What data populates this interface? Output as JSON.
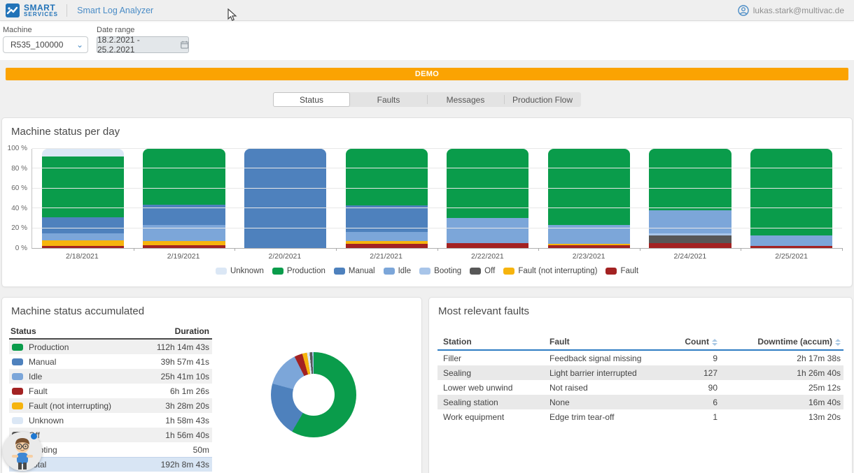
{
  "header": {
    "logo_line1": "SMART",
    "logo_line2": "SERVICES",
    "app_title": "Smart Log Analyzer",
    "user_email": "lukas.stark@multivac.de"
  },
  "filters": {
    "machine_label": "Machine",
    "machine_value": "R535_100000",
    "date_label": "Date range",
    "date_value": "18.2.2021 - 25.2.2021"
  },
  "banner": {
    "text": "DEMO",
    "color": "#fba302"
  },
  "tabs": {
    "items": [
      {
        "label": "Status",
        "active": true
      },
      {
        "label": "Faults",
        "active": false
      },
      {
        "label": "Messages",
        "active": false
      },
      {
        "label": "Production Flow",
        "active": false
      }
    ]
  },
  "statuses": [
    {
      "key": "unknown",
      "label": "Unknown",
      "color": "#dbe7f5"
    },
    {
      "key": "production",
      "label": "Production",
      "color": "#0a9c4b"
    },
    {
      "key": "manual",
      "label": "Manual",
      "color": "#4e81bd"
    },
    {
      "key": "idle",
      "label": "Idle",
      "color": "#7ca6d9"
    },
    {
      "key": "booting",
      "label": "Booting",
      "color": "#a8c5e9"
    },
    {
      "key": "off",
      "label": "Off",
      "color": "#575757"
    },
    {
      "key": "fault_ni",
      "label": "Fault (not interrupting)",
      "color": "#f6b40e"
    },
    {
      "key": "fault",
      "label": "Fault",
      "color": "#a32222"
    }
  ],
  "chart_data": [
    {
      "type": "bar",
      "stacked": true,
      "title": "Machine status per day",
      "categories": [
        "2/18/2021",
        "2/19/2021",
        "2/20/2021",
        "2/21/2021",
        "2/22/2021",
        "2/23/2021",
        "2/24/2021",
        "2/25/2021"
      ],
      "yticks": [
        "0 %",
        "20 %",
        "40 %",
        "60 %",
        "80 %",
        "100 %"
      ],
      "ylim": [
        0,
        100
      ],
      "grid": true,
      "legend_position": "bottom",
      "legend": [
        "Unknown",
        "Production",
        "Manual",
        "Idle",
        "Booting",
        "Off",
        "Fault (not interrupting)",
        "Fault"
      ],
      "series": [
        {
          "key": "fault",
          "name": "Fault",
          "values": [
            2,
            3,
            0,
            4,
            5,
            3,
            5,
            2
          ]
        },
        {
          "key": "fault_ni",
          "name": "Fault (not interrupting)",
          "values": [
            6,
            4,
            0,
            3,
            0,
            1,
            0,
            0
          ]
        },
        {
          "key": "off",
          "name": "Off",
          "values": [
            0,
            0,
            0,
            0,
            0,
            0,
            8,
            0
          ]
        },
        {
          "key": "booting",
          "name": "Booting",
          "values": [
            0,
            0,
            0,
            0,
            0,
            0,
            2,
            0
          ]
        },
        {
          "key": "idle",
          "name": "Idle",
          "values": [
            7,
            16,
            0,
            9,
            25,
            19,
            23,
            11
          ]
        },
        {
          "key": "manual",
          "name": "Manual",
          "values": [
            16,
            21,
            100,
            27,
            0,
            0,
            0,
            0
          ]
        },
        {
          "key": "production",
          "name": "Production",
          "values": [
            61,
            56,
            0,
            57,
            70,
            77,
            62,
            87
          ]
        },
        {
          "key": "unknown",
          "name": "Unknown",
          "values": [
            8,
            0,
            0,
            0,
            0,
            0,
            0,
            0
          ]
        }
      ]
    },
    {
      "type": "pie",
      "donut": true,
      "title": "Machine status accumulated",
      "slices": [
        {
          "key": "production",
          "name": "Production",
          "pct": 58.4
        },
        {
          "key": "manual",
          "name": "Manual",
          "pct": 20.8
        },
        {
          "key": "idle",
          "name": "Idle",
          "pct": 13.4
        },
        {
          "key": "fault",
          "name": "Fault",
          "pct": 3.1
        },
        {
          "key": "fault_ni",
          "name": "Fault (not interrupting)",
          "pct": 1.8
        },
        {
          "key": "unknown",
          "name": "Unknown",
          "pct": 1.0
        },
        {
          "key": "off",
          "name": "Off",
          "pct": 1.0
        },
        {
          "key": "booting",
          "name": "Booting",
          "pct": 0.5
        }
      ]
    }
  ],
  "accumulated": {
    "title": "Machine status accumulated",
    "columns": [
      "Status",
      "Duration"
    ],
    "rows": [
      {
        "key": "production",
        "label": "Production",
        "duration": "112h 14m 43s"
      },
      {
        "key": "manual",
        "label": "Manual",
        "duration": "39h 57m 41s"
      },
      {
        "key": "idle",
        "label": "Idle",
        "duration": "25h 41m 10s"
      },
      {
        "key": "fault",
        "label": "Fault",
        "duration": "6h 1m 26s"
      },
      {
        "key": "fault_ni",
        "label": "Fault (not interrupting)",
        "duration": "3h 28m 20s"
      },
      {
        "key": "unknown",
        "label": "Unknown",
        "duration": "1h 58m 43s"
      },
      {
        "key": "off",
        "label": "Off",
        "duration": "1h 56m 40s"
      },
      {
        "key": "booting",
        "label": "Booting",
        "duration": "50m"
      }
    ],
    "total": {
      "label": "Total",
      "duration": "192h 8m 43s"
    }
  },
  "faults": {
    "title": "Most relevant faults",
    "columns": [
      "Station",
      "Fault",
      "Count",
      "Downtime (accum)"
    ],
    "rows": [
      {
        "station": "Filler",
        "fault": "Feedback signal missing",
        "count": "9",
        "downtime": "2h 17m 38s"
      },
      {
        "station": "Sealing",
        "fault": "Light barrier interrupted",
        "count": "127",
        "downtime": "1h 26m 40s"
      },
      {
        "station": "Lower web unwind",
        "fault": "Not raised",
        "count": "90",
        "downtime": "25m 12s"
      },
      {
        "station": "Sealing station",
        "fault": "None",
        "count": "6",
        "downtime": "16m 40s"
      },
      {
        "station": "Work equipment",
        "fault": "Edge trim tear-off",
        "count": "1",
        "downtime": "13m 20s"
      }
    ]
  },
  "chart_panel_title": "Machine status per day"
}
